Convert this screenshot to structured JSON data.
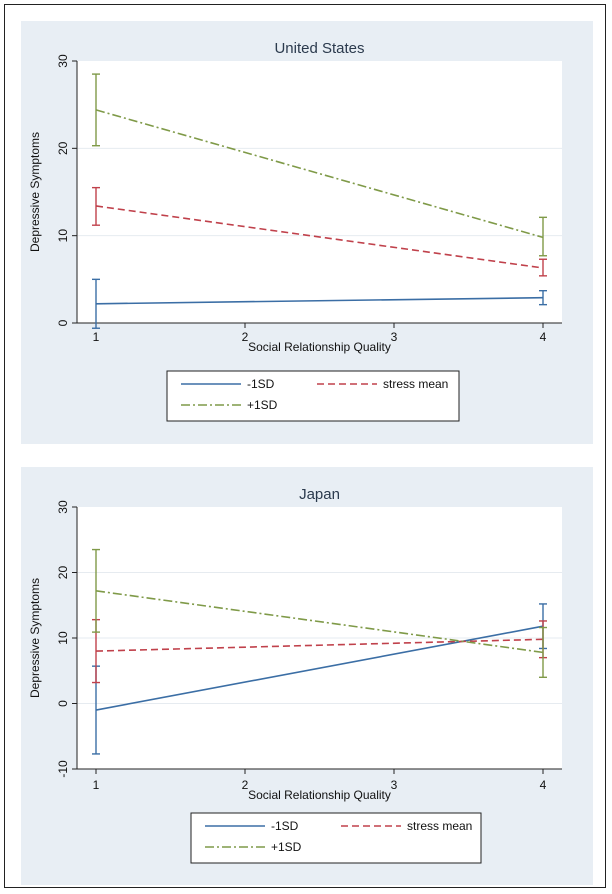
{
  "colors": {
    "panel_bg": "#e8eef4",
    "plot_bg": "#ffffff",
    "axis": "#222222",
    "grid": "#e6ebf0",
    "title_text": "#2b3a4d",
    "series_minus1sd": "#3b6ea5",
    "series_stress_mean": "#c0414b",
    "series_plus1sd": "#7f9a48"
  },
  "chart_data": [
    {
      "type": "line",
      "title": "United States",
      "xlabel": "Social Relationship Quality",
      "ylabel": "Depressive Symptoms",
      "xlim": [
        1,
        4
      ],
      "ylim": [
        0,
        30
      ],
      "xticks": [
        "1",
        "2",
        "3",
        "4"
      ],
      "yticks": [
        "0",
        "10",
        "20",
        "30"
      ],
      "x": [
        1,
        4
      ],
      "grid": true,
      "legend_position": "bottom",
      "series": [
        {
          "name": "-1SD",
          "color": "#3b6ea5",
          "dash": "solid",
          "values": [
            2.2,
            2.9
          ],
          "ci_low": [
            -0.6,
            2.1
          ],
          "ci_high": [
            5.0,
            3.7
          ]
        },
        {
          "name": "stress mean",
          "color": "#c0414b",
          "dash": "dashed",
          "values": [
            13.4,
            6.3
          ],
          "ci_low": [
            11.2,
            5.4
          ],
          "ci_high": [
            15.5,
            7.3
          ]
        },
        {
          "name": "+1SD",
          "color": "#7f9a48",
          "dash": "dashdot",
          "values": [
            24.4,
            9.8
          ],
          "ci_low": [
            20.3,
            7.7
          ],
          "ci_high": [
            28.5,
            12.1
          ]
        }
      ]
    },
    {
      "type": "line",
      "title": "Japan",
      "xlabel": "Social Relationship Quality",
      "ylabel": "Depressive Symptoms",
      "xlim": [
        1,
        4
      ],
      "ylim": [
        -10,
        30
      ],
      "xticks": [
        "1",
        "2",
        "3",
        "4"
      ],
      "yticks": [
        "-10",
        "0",
        "10",
        "20",
        "30"
      ],
      "x": [
        1,
        4
      ],
      "grid": true,
      "legend_position": "bottom",
      "series": [
        {
          "name": "-1SD",
          "color": "#3b6ea5",
          "dash": "solid",
          "values": [
            -1.0,
            11.8
          ],
          "ci_low": [
            -7.7,
            8.4
          ],
          "ci_high": [
            5.7,
            15.2
          ]
        },
        {
          "name": "stress mean",
          "color": "#c0414b",
          "dash": "dashed",
          "values": [
            8.0,
            9.8
          ],
          "ci_low": [
            3.2,
            7.0
          ],
          "ci_high": [
            12.8,
            12.6
          ]
        },
        {
          "name": "+1SD",
          "color": "#7f9a48",
          "dash": "dashdot",
          "values": [
            17.2,
            7.8
          ],
          "ci_low": [
            10.9,
            4.0
          ],
          "ci_high": [
            23.5,
            11.6
          ]
        }
      ]
    }
  ]
}
